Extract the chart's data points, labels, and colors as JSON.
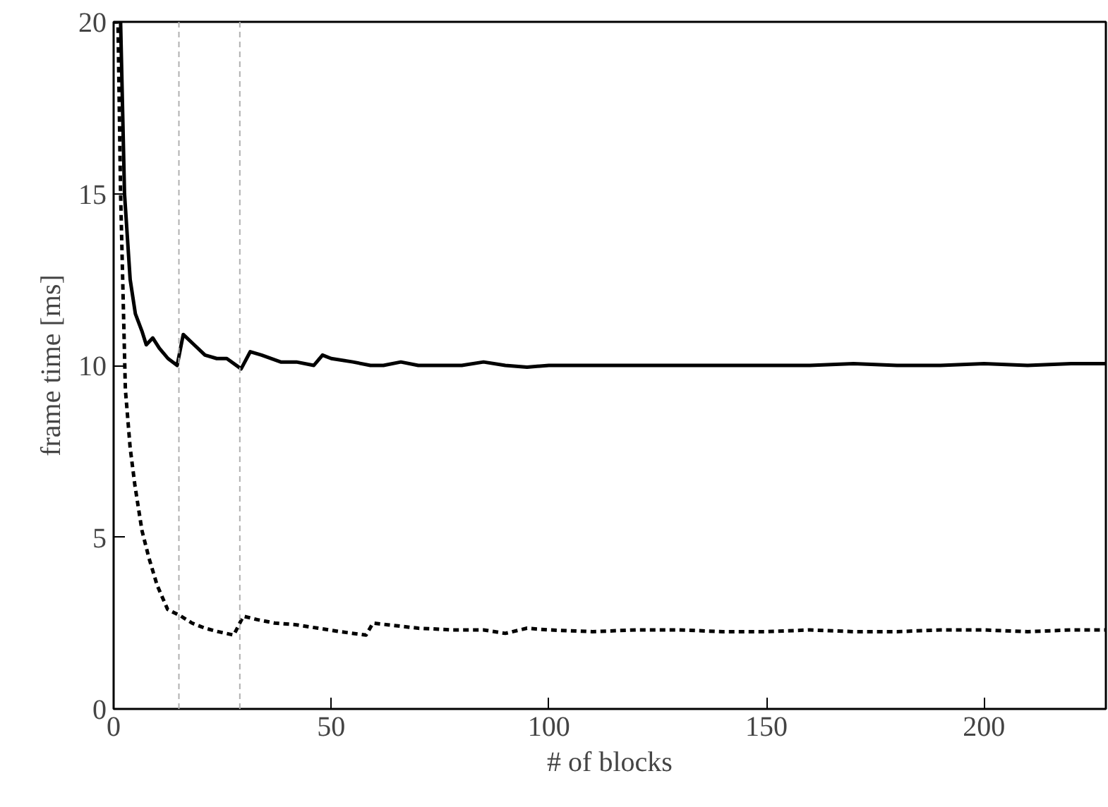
{
  "chart_data": {
    "type": "line",
    "xlabel": "# of blocks",
    "ylabel": "frame time [ms]",
    "xlim": [
      0,
      228
    ],
    "ylim": [
      0,
      20
    ],
    "xticks": [
      0,
      50,
      100,
      150,
      200
    ],
    "yticks": [
      0,
      5,
      10,
      15,
      20
    ],
    "grid": false,
    "series": [
      {
        "color": "#000000",
        "line_style": "solid",
        "x": [
          0,
          1.6,
          2.5,
          3.8,
          5,
          6.5,
          7.5,
          9,
          10.5,
          12.5,
          14.6,
          16,
          18.5,
          21,
          23.7,
          26,
          29.3,
          31.4,
          34,
          38.4,
          42,
          46,
          48,
          50,
          55,
          59,
          62,
          66,
          70,
          75,
          80,
          85,
          90,
          95,
          100,
          110,
          120,
          130,
          140,
          150,
          160,
          170,
          180,
          190,
          200,
          210,
          220,
          228
        ],
        "values": [
          20,
          20,
          15,
          12.5,
          11.5,
          11,
          10.6,
          10.8,
          10.5,
          10.2,
          10.0,
          10.9,
          10.6,
          10.3,
          10.2,
          10.2,
          9.9,
          10.4,
          10.3,
          10.1,
          10.1,
          10.0,
          10.3,
          10.2,
          10.1,
          10.0,
          10.0,
          10.1,
          10.0,
          10.0,
          10.0,
          10.1,
          10.0,
          9.95,
          10.0,
          10.0,
          10.0,
          10.0,
          10.0,
          10.0,
          10.0,
          10.05,
          10.0,
          10.0,
          10.05,
          10.0,
          10.05,
          10.05
        ]
      },
      {
        "color": "#000000",
        "line_style": "dashed",
        "x": [
          0,
          1,
          1.6,
          2.7,
          3.8,
          4.9,
          6.5,
          8.1,
          10,
          12.4,
          15.5,
          18,
          21,
          24,
          27.6,
          29.8,
          33,
          37,
          42,
          47,
          52,
          58,
          59.6,
          63,
          70,
          78,
          85,
          90,
          95,
          100,
          110,
          120,
          130,
          140,
          150,
          160,
          170,
          180,
          190,
          200,
          210,
          220,
          228
        ],
        "values": [
          20,
          20,
          15,
          9.3,
          7.6,
          6.5,
          5.2,
          4.4,
          3.6,
          2.9,
          2.7,
          2.5,
          2.35,
          2.25,
          2.15,
          2.7,
          2.6,
          2.5,
          2.45,
          2.35,
          2.25,
          2.15,
          2.5,
          2.45,
          2.35,
          2.3,
          2.3,
          2.2,
          2.35,
          2.3,
          2.25,
          2.3,
          2.3,
          2.25,
          2.25,
          2.3,
          2.25,
          2.25,
          2.3,
          2.3,
          2.25,
          2.3,
          2.3
        ]
      }
    ],
    "ref_lines": [
      {
        "axis": "x",
        "value": 15,
        "label": null,
        "color": "#b0b0b0",
        "line_style": "dashed"
      },
      {
        "axis": "x",
        "value": 29,
        "label": null,
        "color": "#b0b0b0",
        "line_style": "dashed"
      }
    ]
  }
}
